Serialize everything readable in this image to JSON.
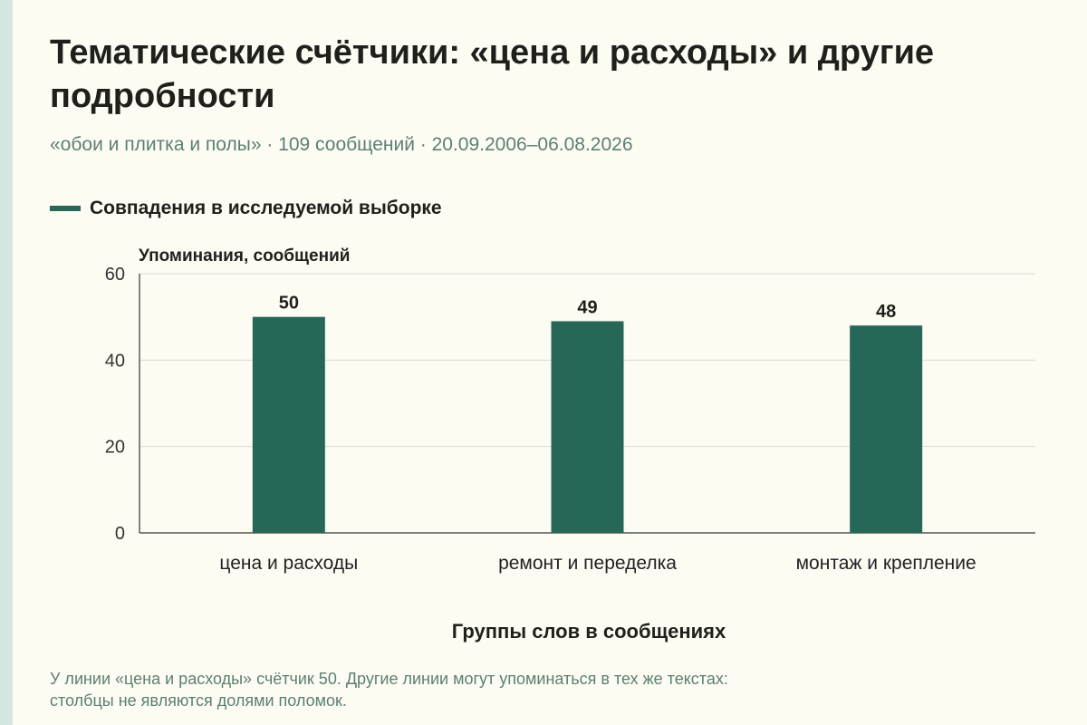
{
  "header": {
    "title": "Тематические счётчики: «цена и расходы» и другие подробности",
    "subtitle": "«обои и плитка и полы» · 109 сообщений · 20.09.2006–06.08.2026"
  },
  "legend": {
    "label": "Совпадения в исследуемой выборке"
  },
  "note": {
    "line1": "У линии «цена и расходы» счётчик 50. Другие линии могут упоминаться в тех же текстах:",
    "line2": "столбцы не являются долями поломок."
  },
  "colors": {
    "bar": "#276757",
    "grid": "#d9d9d2",
    "axis": "#333333",
    "background": "#fdfcf3",
    "muted_text": "#5c7f73"
  },
  "chart_data": {
    "type": "bar",
    "categories": [
      "цена и расходы",
      "ремонт и переделка",
      "монтаж и крепление"
    ],
    "series": [
      {
        "name": "Совпадения в исследуемой выборке",
        "values": [
          50,
          49,
          48
        ]
      }
    ],
    "xlabel": "Группы слов в сообщениях",
    "ylabel": "Упоминания, сообщений",
    "ylim": [
      0,
      60
    ],
    "yticks": [
      0,
      20,
      40,
      60
    ],
    "grid": true,
    "legend_position": "top-left"
  }
}
